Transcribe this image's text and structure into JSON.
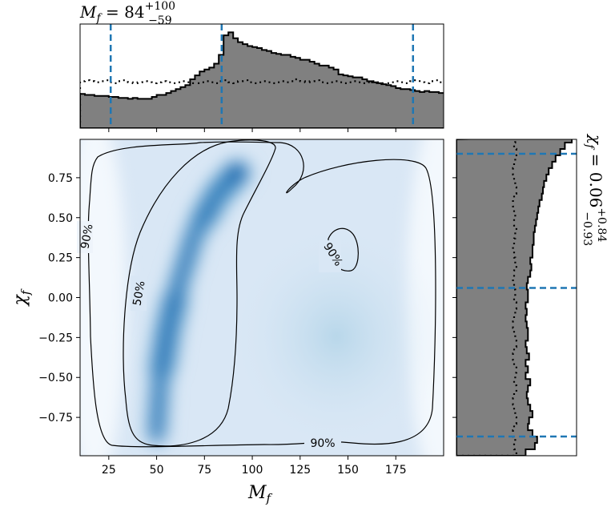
{
  "chart_data": {
    "type": "corner",
    "joint": {
      "type": "heatmap",
      "colormap": "Blues",
      "x_label": "M_f",
      "y_label": "χ_f",
      "x_ticks": [
        25,
        50,
        75,
        100,
        125,
        150,
        175
      ],
      "y_ticks": [
        -0.75,
        -0.5,
        -0.25,
        0.0,
        0.25,
        0.5,
        0.75
      ],
      "xlim": [
        10,
        200
      ],
      "ylim": [
        -0.99,
        0.99
      ],
      "density_ridge": [
        {
          "x": 50,
          "y": -0.85
        },
        {
          "x": 52,
          "y": -0.5
        },
        {
          "x": 56,
          "y": -0.2
        },
        {
          "x": 62,
          "y": 0.1
        },
        {
          "x": 70,
          "y": 0.4
        },
        {
          "x": 82,
          "y": 0.65
        },
        {
          "x": 95,
          "y": 0.82
        }
      ],
      "contours": [
        {
          "level": "50%",
          "label": "50%"
        },
        {
          "level": "90%",
          "label": "90%"
        }
      ]
    },
    "marginal_x": {
      "type": "histogram",
      "title_param": "M_f",
      "median": "84",
      "upper_err": "+100",
      "lower_err": "−59",
      "quantile_lines": [
        26,
        84,
        184
      ],
      "bin_edges_start": 10,
      "bin_width": 2.5,
      "posterior_heights": [
        0.35,
        0.34,
        0.34,
        0.33,
        0.33,
        0.33,
        0.32,
        0.32,
        0.31,
        0.31,
        0.3,
        0.31,
        0.3,
        0.3,
        0.3,
        0.32,
        0.34,
        0.34,
        0.36,
        0.38,
        0.4,
        0.42,
        0.44,
        0.5,
        0.54,
        0.58,
        0.6,
        0.62,
        0.66,
        0.75,
        0.95,
        0.98,
        0.92,
        0.88,
        0.86,
        0.84,
        0.83,
        0.82,
        0.8,
        0.79,
        0.77,
        0.76,
        0.75,
        0.75,
        0.73,
        0.72,
        0.7,
        0.7,
        0.68,
        0.66,
        0.64,
        0.64,
        0.62,
        0.6,
        0.55,
        0.54,
        0.53,
        0.52,
        0.52,
        0.5,
        0.48,
        0.47,
        0.46,
        0.45,
        0.44,
        0.43,
        0.41,
        0.4,
        0.4,
        0.39,
        0.38,
        0.37,
        0.38,
        0.37,
        0.37,
        0.36,
        0.36,
        0.36,
        0.35,
        0.33,
        0.33,
        0.32,
        0.31,
        0.31,
        0.3,
        0.3,
        0.3,
        0.31,
        0.31,
        0.31,
        0.31,
        0.32,
        0.33,
        0.33,
        0.33,
        0.32,
        0.32,
        0.32,
        0.32,
        0.32,
        0.32,
        0.32,
        0.32,
        0.3,
        0.3,
        0.3,
        0.3,
        0.29,
        0.29,
        0.3,
        0.3,
        0.29,
        0.29,
        0.29,
        0.29,
        0.3,
        0.3,
        0.3,
        0.3,
        0.3,
        0.29,
        0.29,
        0.3,
        0.3,
        0.3,
        0.3,
        0.29,
        0.29,
        0.29,
        0.29,
        0.29,
        0.29,
        0.29,
        0.29,
        0.29,
        0.29,
        0.29,
        0.29,
        0.29,
        0.29,
        0.29,
        0.29,
        0.29,
        0.29,
        0.29,
        0.29,
        0.29,
        0.29,
        0.29,
        0.29,
        0.29,
        0.29,
        0.29,
        0.29,
        0.29,
        0.29,
        0.29,
        0.29,
        0.29,
        0.29,
        0.29,
        0.29,
        0.29,
        0.29,
        0.29,
        0.29,
        0.29,
        0.29,
        0.29,
        0.29,
        0.29,
        0.29,
        0.29,
        0.29
      ],
      "prior_heights": [
        0.48,
        0.49,
        0.48,
        0.47,
        0.48,
        0.49,
        0.47,
        0.46,
        0.48,
        0.49,
        0.47,
        0.46,
        0.47,
        0.48,
        0.47,
        0.46,
        0.47,
        0.48,
        0.47,
        0.46,
        0.47,
        0.48,
        0.47,
        0.46,
        0.46,
        0.47,
        0.48,
        0.47,
        0.46,
        0.48,
        0.49,
        0.47,
        0.46,
        0.48,
        0.49,
        0.47,
        0.46,
        0.47,
        0.48,
        0.47,
        0.46,
        0.47,
        0.48,
        0.47,
        0.48,
        0.5,
        0.48,
        0.47,
        0.48,
        0.49,
        0.47,
        0.46,
        0.47,
        0.48,
        0.47,
        0.46,
        0.47,
        0.48,
        0.47,
        0.46,
        0.47,
        0.48,
        0.47,
        0.46,
        0.46,
        0.47,
        0.48,
        0.47,
        0.46,
        0.48,
        0.49,
        0.47,
        0.46,
        0.48,
        0.49,
        0.47,
        0.46,
        0.47,
        0.48,
        0.47,
        0.46,
        0.47,
        0.48,
        0.47,
        0.48,
        0.5,
        0.48,
        0.47,
        0.48,
        0.49,
        0.47,
        0.46,
        0.47,
        0.48,
        0.47,
        0.46,
        0.47,
        0.48,
        0.47,
        0.46,
        0.47,
        0.48,
        0.47,
        0.46,
        0.46,
        0.47,
        0.48,
        0.47,
        0.46,
        0.48,
        0.49,
        0.47,
        0.46,
        0.48,
        0.49,
        0.47,
        0.46,
        0.47,
        0.48,
        0.47,
        0.46,
        0.47,
        0.48,
        0.47,
        0.48,
        0.5,
        0.48,
        0.47,
        0.48,
        0.49,
        0.47,
        0.46,
        0.47,
        0.48,
        0.47,
        0.46,
        0.47,
        0.48,
        0.47,
        0.46,
        0.47,
        0.48,
        0.47,
        0.46,
        0.46,
        0.47,
        0.48,
        0.47,
        0.46,
        0.48,
        0.49,
        0.47,
        0.46,
        0.48,
        0.49,
        0.47,
        0.46,
        0.47,
        0.48,
        0.47,
        0.46,
        0.47,
        0.48,
        0.47,
        0.48,
        0.5,
        0.48,
        0.47,
        0.48,
        0.49,
        0.47,
        0.46,
        0.47,
        0.48,
        0.47,
        0.46,
        0.47,
        0.48,
        0.47,
        0.46
      ]
    },
    "marginal_y": {
      "type": "histogram",
      "title_param": "χ_f",
      "median": "0.06",
      "upper_err": "+0.84",
      "lower_err": "−0.93",
      "quantile_lines": [
        -0.87,
        0.06,
        0.9
      ],
      "bin_edges_start": -0.99,
      "bin_width": 0.04,
      "posterior_widths": [
        0.6,
        0.68,
        0.7,
        0.66,
        0.62,
        0.63,
        0.66,
        0.64,
        0.62,
        0.61,
        0.62,
        0.64,
        0.6,
        0.62,
        0.6,
        0.63,
        0.61,
        0.6,
        0.62,
        0.62,
        0.61,
        0.6,
        0.61,
        0.6,
        0.62,
        0.62,
        0.61,
        0.62,
        0.64,
        0.65,
        0.64,
        0.66,
        0.66,
        0.67,
        0.67,
        0.68,
        0.69,
        0.7,
        0.71,
        0.72,
        0.74,
        0.75,
        0.76,
        0.78,
        0.8,
        0.83,
        0.86,
        0.9,
        0.94,
        1.0
      ],
      "prior_widths": [
        0.52,
        0.5,
        0.51,
        0.49,
        0.5,
        0.52,
        0.51,
        0.5,
        0.49,
        0.5,
        0.52,
        0.5,
        0.51,
        0.52,
        0.5,
        0.49,
        0.5,
        0.52,
        0.51,
        0.5,
        0.49,
        0.5,
        0.51,
        0.52,
        0.5,
        0.51,
        0.5,
        0.49,
        0.5,
        0.52,
        0.51,
        0.5,
        0.49,
        0.5,
        0.51,
        0.52,
        0.5,
        0.51,
        0.5,
        0.49,
        0.5,
        0.52,
        0.51,
        0.5,
        0.49,
        0.5,
        0.51,
        0.52,
        0.5,
        0.51
      ]
    },
    "colors": {
      "posterior_fill": "#808080",
      "quantile_line": "#1f77b4",
      "contour": "#000000"
    }
  }
}
